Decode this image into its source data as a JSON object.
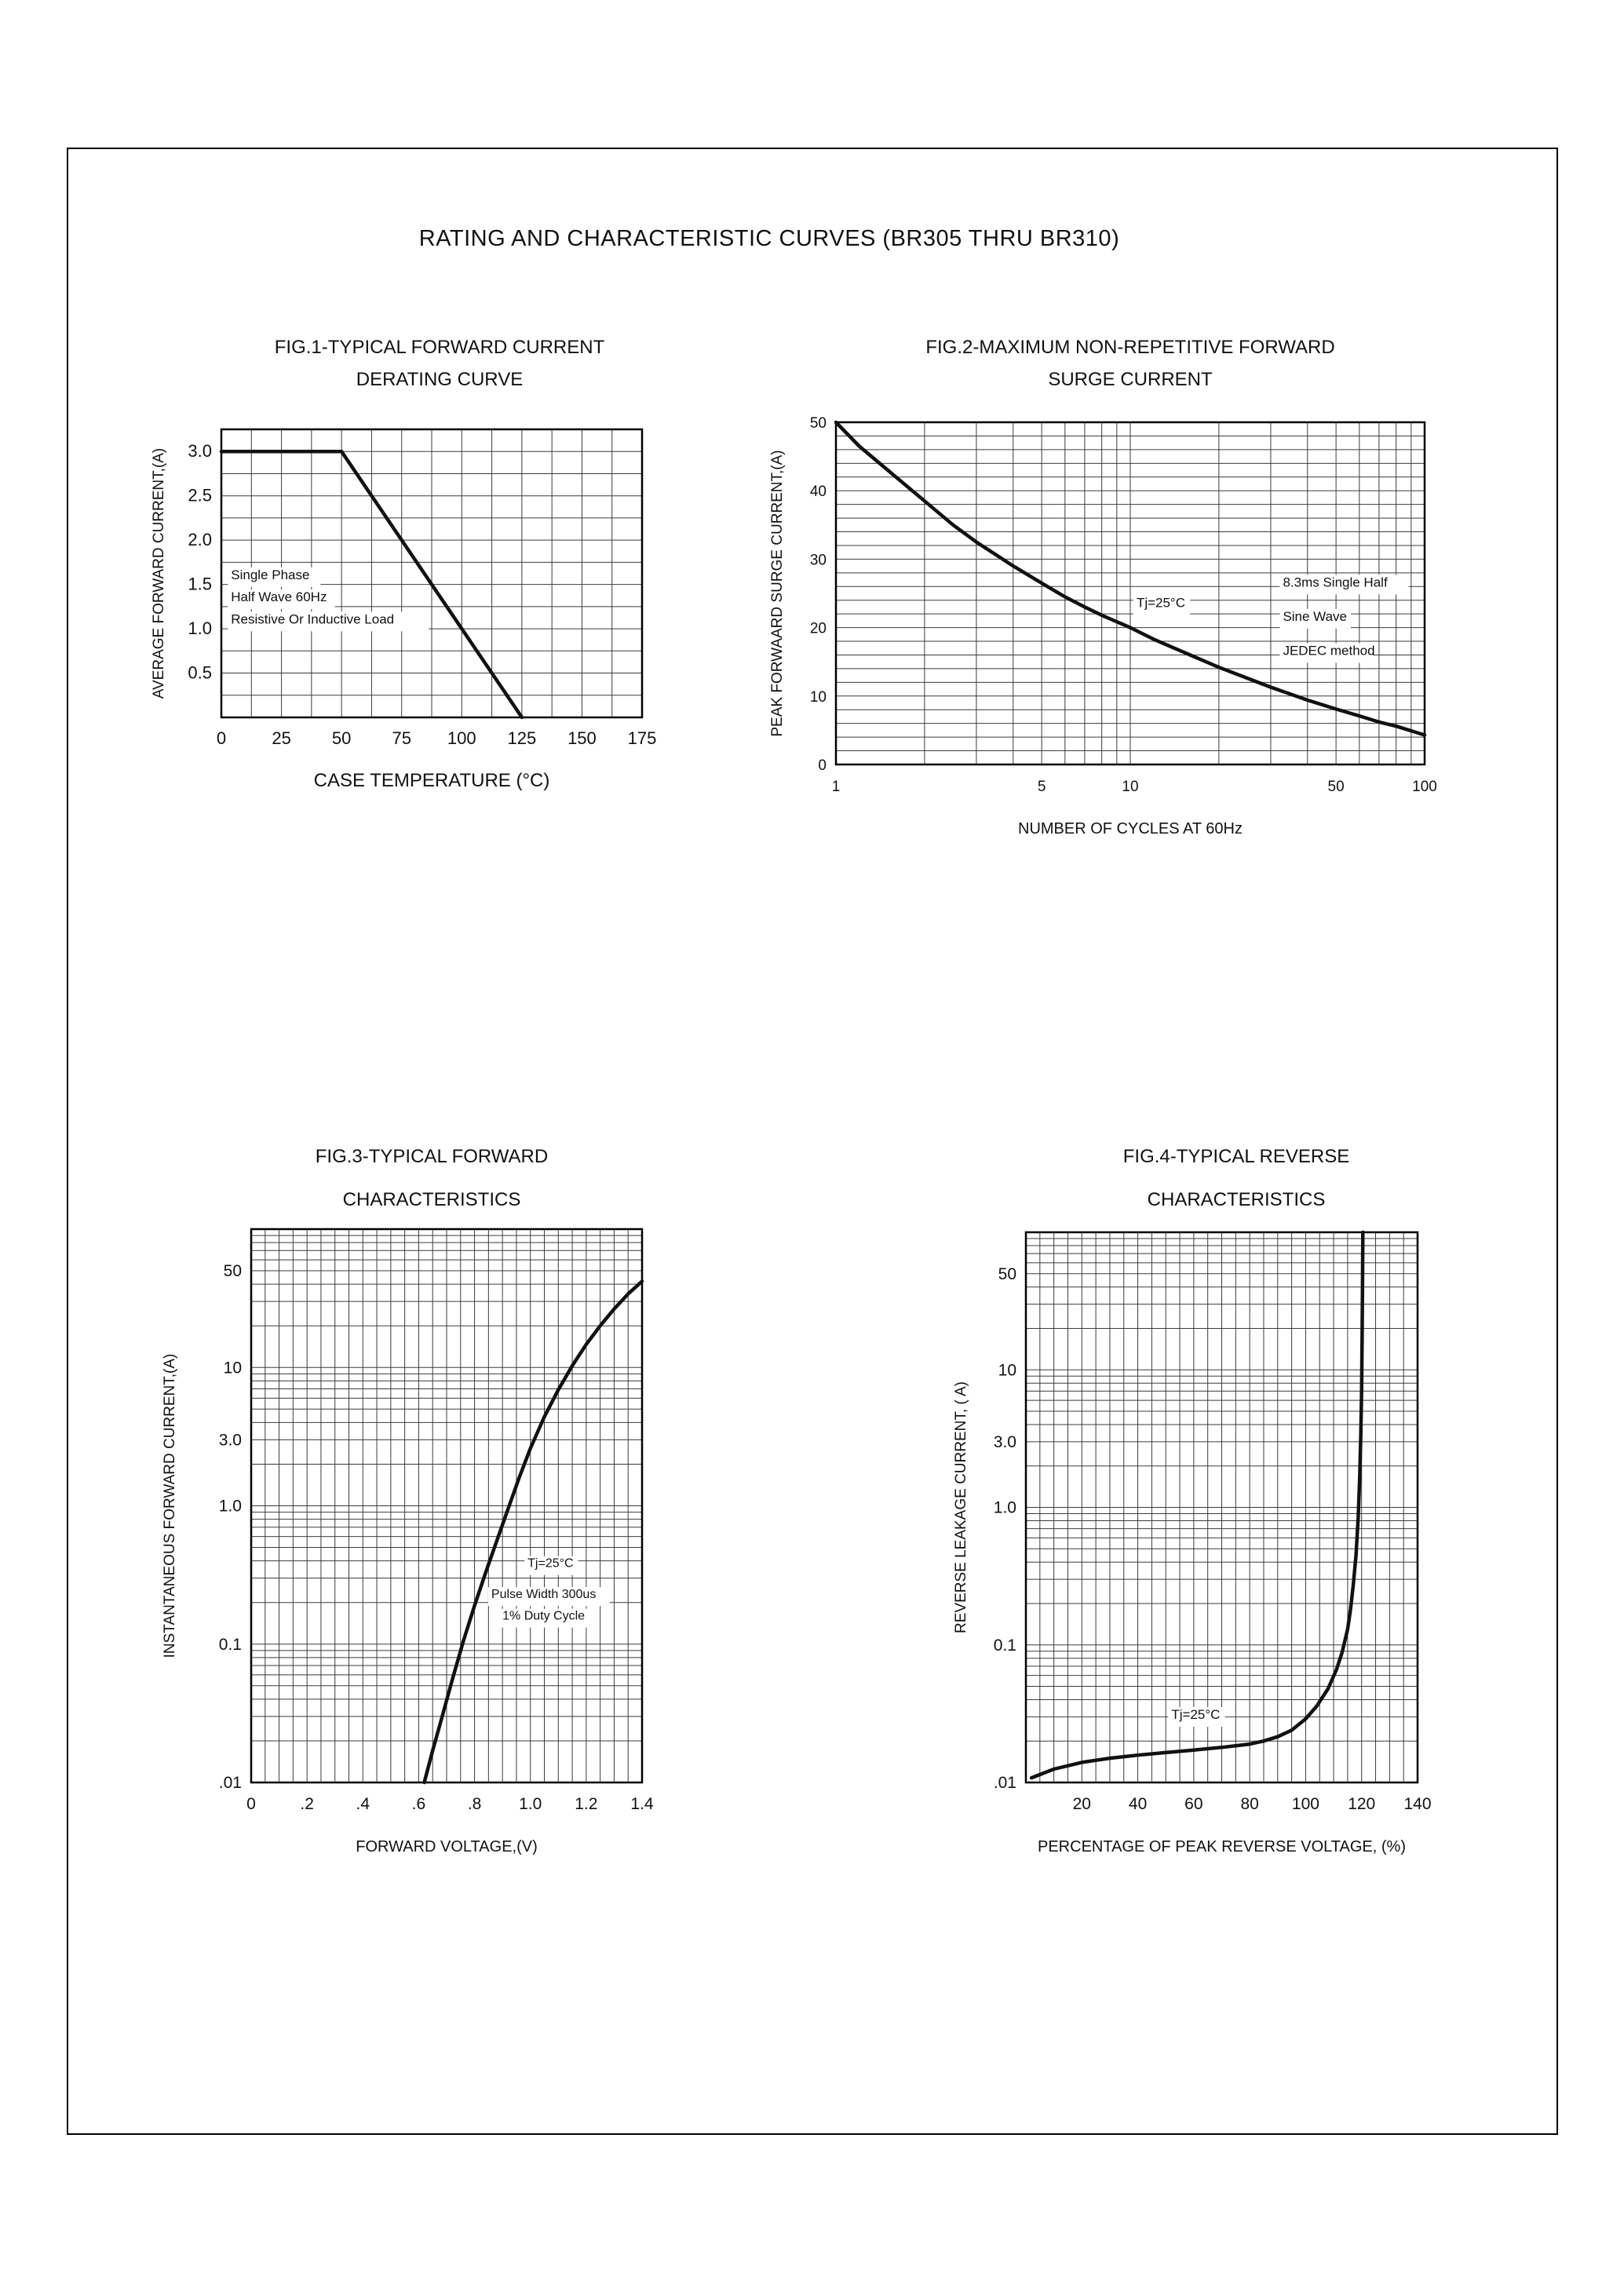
{
  "page_title": "RATING AND CHARACTERISTIC CURVES (BR305 THRU BR310)",
  "style": {
    "curve_color": "#111111",
    "grid_color": "#3b3b3b",
    "border_color": "#000000",
    "background": "#ffffff"
  },
  "chart_data": [
    {
      "type": "line",
      "title1": "FIG.1-TYPICAL FORWARD CURRENT",
      "title2": "DERATING CURVE",
      "xlabel": "CASE TEMPERATURE (°C)",
      "ylabel": "AVERAGE FORWARD CURRENT,(A)",
      "x": {
        "scale": "linear",
        "min": 0,
        "max": 175,
        "minor": 12.5,
        "ticks": [
          {
            "v": 0,
            "l": "0"
          },
          {
            "v": 25,
            "l": "25"
          },
          {
            "v": 50,
            "l": "50"
          },
          {
            "v": 75,
            "l": "75"
          },
          {
            "v": 100,
            "l": "100"
          },
          {
            "v": 125,
            "l": "125"
          },
          {
            "v": 150,
            "l": "150"
          },
          {
            "v": 175,
            "l": "175"
          }
        ]
      },
      "y": {
        "scale": "linear",
        "min": 0,
        "max": 3.25,
        "minor": 0.25,
        "ticks": [
          {
            "v": 0.5,
            "l": "0.5"
          },
          {
            "v": 1.0,
            "l": "1.0"
          },
          {
            "v": 1.5,
            "l": "1.5"
          },
          {
            "v": 2.0,
            "l": "2.0"
          },
          {
            "v": 2.5,
            "l": "2.5"
          },
          {
            "v": 3.0,
            "l": "3.0"
          }
        ]
      },
      "series": [
        {
          "name": "forward-current-derating",
          "points": [
            [
              0,
              3.0
            ],
            [
              50,
              3.0
            ],
            [
              125,
              0
            ]
          ]
        }
      ],
      "annotations": [
        {
          "x": 4,
          "y": 1.56,
          "t": "Single Phase"
        },
        {
          "x": 4,
          "y": 1.31,
          "t": "Half Wave 60Hz"
        },
        {
          "x": 4,
          "y": 1.06,
          "t": "Resistive Or Inductive Load"
        }
      ]
    },
    {
      "type": "line",
      "title1": "FIG.2-MAXIMUM NON-REPETITIVE FORWARD",
      "title2": "SURGE CURRENT",
      "xlabel": "NUMBER OF CYCLES AT 60Hz",
      "ylabel": "PEAK FORWAARD SURGE CURRENT,(A)",
      "x": {
        "scale": "log",
        "min": 1,
        "max": 100,
        "ticks": [
          {
            "v": 1,
            "l": "1"
          },
          {
            "v": 5,
            "l": "5"
          },
          {
            "v": 10,
            "l": "10"
          },
          {
            "v": 50,
            "l": "50"
          },
          {
            "v": 100,
            "l": "100"
          }
        ]
      },
      "y": {
        "scale": "linear",
        "min": 0,
        "max": 50,
        "minor": 2,
        "ticks": [
          {
            "v": 0,
            "l": "0"
          },
          {
            "v": 10,
            "l": "10"
          },
          {
            "v": 20,
            "l": "20"
          },
          {
            "v": 30,
            "l": "30"
          },
          {
            "v": 40,
            "l": "40"
          },
          {
            "v": 50,
            "l": "50"
          }
        ]
      },
      "series": [
        {
          "name": "surge-current",
          "points": [
            [
              1,
              50
            ],
            [
              1.2,
              46.5
            ],
            [
              1.5,
              43
            ],
            [
              2,
              38.5
            ],
            [
              2.5,
              35
            ],
            [
              3,
              32.5
            ],
            [
              4,
              29
            ],
            [
              5,
              26.5
            ],
            [
              6,
              24.5
            ],
            [
              7,
              23
            ],
            [
              8,
              21.8
            ],
            [
              10,
              20
            ],
            [
              12,
              18.3
            ],
            [
              15,
              16.5
            ],
            [
              20,
              14.2
            ],
            [
              25,
              12.6
            ],
            [
              30,
              11.3
            ],
            [
              40,
              9.4
            ],
            [
              50,
              8.1
            ],
            [
              60,
              7.1
            ],
            [
              70,
              6.2
            ],
            [
              80,
              5.6
            ],
            [
              100,
              4.3
            ]
          ]
        }
      ],
      "annotations": [
        {
          "x": 10.5,
          "y": 23,
          "t": "Tj=25°C"
        },
        {
          "x": 33,
          "y": 26,
          "t": "8.3ms Single Half"
        },
        {
          "x": 33,
          "y": 21,
          "t": "Sine Wave"
        },
        {
          "x": 33,
          "y": 16,
          "t": "JEDEC method"
        }
      ]
    },
    {
      "type": "line",
      "title1": "FIG.3-TYPICAL FORWARD",
      "title2": "CHARACTERISTICS",
      "xlabel": "FORWARD VOLTAGE,(V)",
      "ylabel": "INSTANTANEOUS FORWARD CURRENT,(A)",
      "x": {
        "scale": "linear",
        "min": 0,
        "max": 1.4,
        "minor": 0.05,
        "ticks": [
          {
            "v": 0,
            "l": "0"
          },
          {
            "v": 0.2,
            "l": ".2"
          },
          {
            "v": 0.4,
            "l": ".4"
          },
          {
            "v": 0.6,
            "l": ".6"
          },
          {
            "v": 0.8,
            "l": ".8"
          },
          {
            "v": 1.0,
            "l": "1.0"
          },
          {
            "v": 1.2,
            "l": "1.2"
          },
          {
            "v": 1.4,
            "l": "1.4"
          }
        ]
      },
      "y": {
        "scale": "log",
        "min": 0.01,
        "max": 100,
        "ticks": [
          {
            "v": 50,
            "l": "50"
          },
          {
            "v": 10,
            "l": "10"
          },
          {
            "v": 3,
            "l": "3.0"
          },
          {
            "v": 1,
            "l": "1.0"
          },
          {
            "v": 0.1,
            "l": "0.1"
          },
          {
            "v": 0.01,
            "l": ".01"
          }
        ]
      },
      "series": [
        {
          "name": "forward-characteristic",
          "points": [
            [
              0.62,
              0.01
            ],
            [
              0.65,
              0.017
            ],
            [
              0.68,
              0.028
            ],
            [
              0.72,
              0.055
            ],
            [
              0.76,
              0.105
            ],
            [
              0.8,
              0.19
            ],
            [
              0.84,
              0.33
            ],
            [
              0.88,
              0.56
            ],
            [
              0.92,
              0.95
            ],
            [
              0.96,
              1.6
            ],
            [
              1.0,
              2.6
            ],
            [
              1.05,
              4.4
            ],
            [
              1.1,
              6.9
            ],
            [
              1.15,
              10.3
            ],
            [
              1.2,
              14.7
            ],
            [
              1.25,
              20
            ],
            [
              1.3,
              26.5
            ],
            [
              1.35,
              34
            ],
            [
              1.4,
              42
            ]
          ]
        }
      ],
      "annotations": [
        {
          "x": 0.99,
          "y": 0.36,
          "t": "Tj=25°C"
        },
        {
          "x": 0.86,
          "y": 0.215,
          "t": "Pulse Width 300us"
        },
        {
          "x": 0.9,
          "y": 0.15,
          "t": "1% Duty Cycle"
        }
      ]
    },
    {
      "type": "line",
      "title1": "FIG.4-TYPICAL REVERSE",
      "title2": "CHARACTERISTICS",
      "xlabel": "PERCENTAGE OF PEAK REVERSE VOLTAGE, (%)",
      "ylabel": "REVERSE LEAKAGE CURRENT, ( A)",
      "x": {
        "scale": "linear",
        "min": 0,
        "max": 140,
        "minor": 5,
        "ticks": [
          {
            "v": 20,
            "l": "20"
          },
          {
            "v": 40,
            "l": "40"
          },
          {
            "v": 60,
            "l": "60"
          },
          {
            "v": 80,
            "l": "80"
          },
          {
            "v": 100,
            "l": "100"
          },
          {
            "v": 120,
            "l": "120"
          },
          {
            "v": 140,
            "l": "140"
          }
        ]
      },
      "y": {
        "scale": "log",
        "min": 0.01,
        "max": 100,
        "ticks": [
          {
            "v": 50,
            "l": "50"
          },
          {
            "v": 10,
            "l": "10"
          },
          {
            "v": 3,
            "l": "3.0"
          },
          {
            "v": 1,
            "l": "1.0"
          },
          {
            "v": 0.1,
            "l": "0.1"
          },
          {
            "v": 0.01,
            "l": ".01"
          }
        ]
      },
      "series": [
        {
          "name": "reverse-leakage",
          "points": [
            [
              2,
              0.0108
            ],
            [
              10,
              0.0125
            ],
            [
              20,
              0.014
            ],
            [
              30,
              0.015
            ],
            [
              40,
              0.0158
            ],
            [
              50,
              0.0165
            ],
            [
              60,
              0.0172
            ],
            [
              70,
              0.018
            ],
            [
              80,
              0.019
            ],
            [
              85,
              0.02
            ],
            [
              90,
              0.0215
            ],
            [
              95,
              0.024
            ],
            [
              100,
              0.029
            ],
            [
              104,
              0.036
            ],
            [
              108,
              0.048
            ],
            [
              111,
              0.066
            ],
            [
              113,
              0.088
            ],
            [
              115,
              0.13
            ],
            [
              116,
              0.18
            ],
            [
              117,
              0.27
            ],
            [
              118,
              0.45
            ],
            [
              118.8,
              0.85
            ],
            [
              119.3,
              1.6
            ],
            [
              119.7,
              3.2
            ],
            [
              120,
              7
            ],
            [
              120.2,
              18
            ],
            [
              120.35,
              55
            ],
            [
              120.45,
              100
            ]
          ]
        }
      ],
      "annotations": [
        {
          "x": 52,
          "y": 0.029,
          "t": "Tj=25°C"
        }
      ]
    }
  ]
}
